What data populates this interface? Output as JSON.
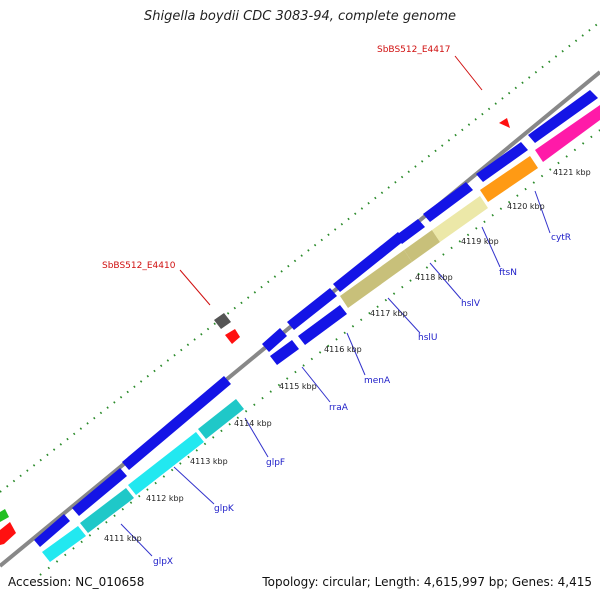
{
  "title": "Shigella boydii CDC 3083-94, complete genome",
  "accession_text": "Accession: NC_010658",
  "topology_text": "Topology: circular; Length: 4,615,997 bp; Genes: 4,415",
  "colors": {
    "backbone": "#888888",
    "tick": "#2a8a2a",
    "gene_label": "#1c1cc8",
    "site_label": "#d01010",
    "blue": "#1414e6",
    "cyan": "#22e8f0",
    "teal": "#1fc8c8",
    "khaki": "#c8c07a",
    "paleyellow": "#ece8a8",
    "orange": "#ff9a14",
    "magenta": "#ff1aa8",
    "red": "#ff1010",
    "gray": "#555555",
    "green": "#22c022"
  },
  "kbp_ticks": [
    "4111 kbp",
    "4112 kbp",
    "4113 kbp",
    "4114 kbp",
    "4115 kbp",
    "4116 kbp",
    "4117 kbp",
    "4118 kbp",
    "4119 kbp",
    "4120 kbp",
    "4121 kbp"
  ],
  "genes": [
    "glpX",
    "glpK",
    "glpF",
    "rraA",
    "menA",
    "hslU",
    "hslV",
    "ftsN",
    "cytR"
  ],
  "sites": [
    "SbBS512_E4417",
    "SbBS512_E4410"
  ]
}
